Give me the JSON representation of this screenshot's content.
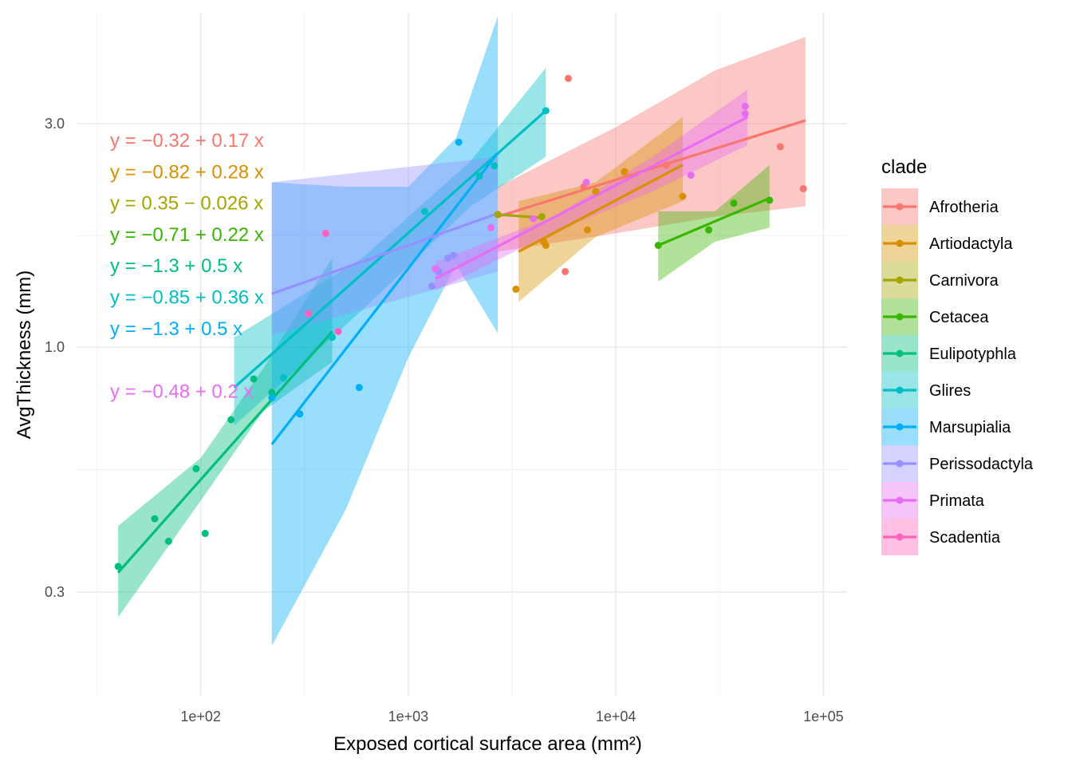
{
  "chart_data": {
    "type": "scatter",
    "title": "",
    "xlabel": "Exposed cortical surface area (mm²)",
    "ylabel": "AvgThickness (mm)",
    "x_scale": "log10",
    "y_scale": "log10",
    "xlim": [
      25,
      130000
    ],
    "ylim": [
      0.18,
      5.2
    ],
    "x_ticks": [
      100,
      1000,
      10000,
      100000
    ],
    "x_tick_labels": [
      "1e+02",
      "1e+03",
      "1e+04",
      "1e+05"
    ],
    "y_ticks": [
      0.3,
      1.0,
      3.0
    ],
    "y_tick_labels": [
      "0.3",
      "1.0",
      "3.0"
    ],
    "grid": true,
    "legend_position": "right",
    "legend_title": "clade",
    "series": [
      {
        "name": "Afrotheria",
        "color": "#F8766D",
        "points": [
          [
            5900,
            3.75
          ],
          [
            2700,
            1.92
          ],
          [
            7000,
            2.2
          ],
          [
            11000,
            2.37
          ],
          [
            17500,
            2.45
          ],
          [
            5700,
            1.45
          ],
          [
            62000,
            2.68
          ],
          [
            80000,
            2.18
          ]
        ],
        "fit": {
          "x0": 2700,
          "x1": 82000,
          "y0": 1.9,
          "y1": 3.05
        },
        "band": [
          [
            2700,
            1.6,
            2.2
          ],
          [
            10000,
            1.75,
            2.95
          ],
          [
            30000,
            1.9,
            3.9
          ],
          [
            82000,
            2.0,
            4.6
          ]
        ],
        "equation": "y = −0.32 + 0.17 x"
      },
      {
        "name": "Artiodactyla",
        "color": "#D89000",
        "points": [
          [
            3300,
            1.33
          ],
          [
            4500,
            1.68
          ],
          [
            4600,
            1.65
          ],
          [
            7300,
            1.78
          ],
          [
            8000,
            2.15
          ],
          [
            11000,
            2.37
          ],
          [
            21000,
            2.1
          ]
        ],
        "fit": {
          "x0": 3400,
          "x1": 21000,
          "y0": 1.6,
          "y1": 2.45
        },
        "band": [
          [
            3400,
            1.25,
            2.05
          ],
          [
            8000,
            1.72,
            2.25
          ],
          [
            21000,
            2.05,
            3.1
          ]
        ],
        "equation": "y = −0.82 + 0.28 x"
      },
      {
        "name": "Carnivora",
        "color": "#A3A500",
        "points": [
          [
            2700,
            1.92
          ],
          [
            4400,
            1.9
          ]
        ],
        "fit": {
          "x0": 2700,
          "x1": 4400,
          "y0": 1.92,
          "y1": 1.89
        },
        "equation": "y = 0.35 − 0.026 x"
      },
      {
        "name": "Cetacea",
        "color": "#39B600",
        "points": [
          [
            16000,
            1.65
          ],
          [
            28000,
            1.78
          ],
          [
            37000,
            2.03
          ],
          [
            55000,
            2.06
          ]
        ],
        "fit": {
          "x0": 16000,
          "x1": 55000,
          "y0": 1.65,
          "y1": 2.08
        },
        "band": [
          [
            16000,
            1.38,
            1.95
          ],
          [
            30000,
            1.68,
            1.95
          ],
          [
            55000,
            1.8,
            2.45
          ]
        ],
        "equation": "y = −0.71 + 0.22 x"
      },
      {
        "name": "Eulipotyphla",
        "color": "#00BF7D",
        "points": [
          [
            40,
            0.34
          ],
          [
            60,
            0.43
          ],
          [
            70,
            0.385
          ],
          [
            95,
            0.55
          ],
          [
            105,
            0.4
          ],
          [
            140,
            0.7
          ],
          [
            180,
            0.855
          ],
          [
            220,
            0.8
          ]
        ],
        "fit": {
          "x0": 40,
          "x1": 430,
          "y0": 0.33,
          "y1": 1.08
        },
        "band": [
          [
            40,
            0.265,
            0.415
          ],
          [
            100,
            0.47,
            0.58
          ],
          [
            200,
            0.73,
            0.9
          ],
          [
            430,
            0.93,
            1.55
          ]
        ],
        "equation": "y = −1.3 + 0.5 x"
      },
      {
        "name": "Glires",
        "color": "#00BFC4",
        "points": [
          [
            4600,
            3.2
          ],
          [
            2600,
            2.44
          ],
          [
            2200,
            2.32
          ],
          [
            1200,
            1.95
          ],
          [
            430,
            1.05
          ],
          [
            250,
            0.86
          ]
        ],
        "fit": {
          "x0": 145,
          "x1": 4600,
          "y0": 0.82,
          "y1": 3.2
        },
        "band": [
          [
            145,
            0.68,
            1.05
          ],
          [
            600,
            1.2,
            1.55
          ],
          [
            2000,
            2.0,
            2.5
          ],
          [
            4600,
            2.55,
            3.95
          ]
        ],
        "equation": "y = −0.85 + 0.36 x"
      },
      {
        "name": "Marsupialia",
        "color": "#00B0F6",
        "points": [
          [
            1750,
            2.74
          ],
          [
            580,
            0.82
          ],
          [
            300,
            0.72
          ],
          [
            220,
            0.78
          ]
        ],
        "fit": {
          "x0": 220,
          "x1": 2700,
          "y0": 0.62,
          "y1": 2.6
        },
        "band": [
          [
            220,
            0.23,
            2.25
          ],
          [
            500,
            0.45,
            2.2
          ],
          [
            1000,
            0.95,
            2.2
          ],
          [
            1700,
            1.5,
            2.8
          ],
          [
            2700,
            1.07,
            5.1
          ]
        ],
        "equation": "y = −1.3 + 0.5 x"
      },
      {
        "name": "Perissodactyla",
        "color": "#9590FF",
        "points": [
          [
            1300,
            1.35
          ],
          [
            1400,
            1.45
          ],
          [
            1550,
            1.55
          ],
          [
            1650,
            1.57
          ]
        ],
        "fit": {
          "x0": 220,
          "x1": 2700,
          "y0": 1.3,
          "y1": 1.93
        },
        "band": [
          [
            220,
            1.06,
            2.25
          ],
          [
            2700,
            1.45,
            2.55
          ]
        ],
        "equation": ""
      },
      {
        "name": "Primata",
        "color": "#E76BF3",
        "points": [
          [
            1350,
            1.47
          ],
          [
            2500,
            1.8
          ],
          [
            4000,
            1.88
          ],
          [
            7200,
            2.25
          ],
          [
            23000,
            2.33
          ],
          [
            42000,
            3.27
          ],
          [
            42000,
            3.15
          ]
        ],
        "fit": {
          "x0": 1350,
          "x1": 43000,
          "y0": 1.4,
          "y1": 3.1
        },
        "band": [
          [
            1350,
            1.32,
            1.52
          ],
          [
            5000,
            1.76,
            1.9
          ],
          [
            15000,
            2.15,
            2.55
          ],
          [
            43000,
            2.7,
            3.55
          ]
        ],
        "equation": "y = −0.48 + 0.2 x"
      },
      {
        "name": "Scadentia",
        "color": "#FF62BC",
        "points": [
          [
            400,
            1.75
          ],
          [
            460,
            1.08
          ],
          [
            330,
            1.18
          ]
        ],
        "equation": ""
      }
    ]
  }
}
